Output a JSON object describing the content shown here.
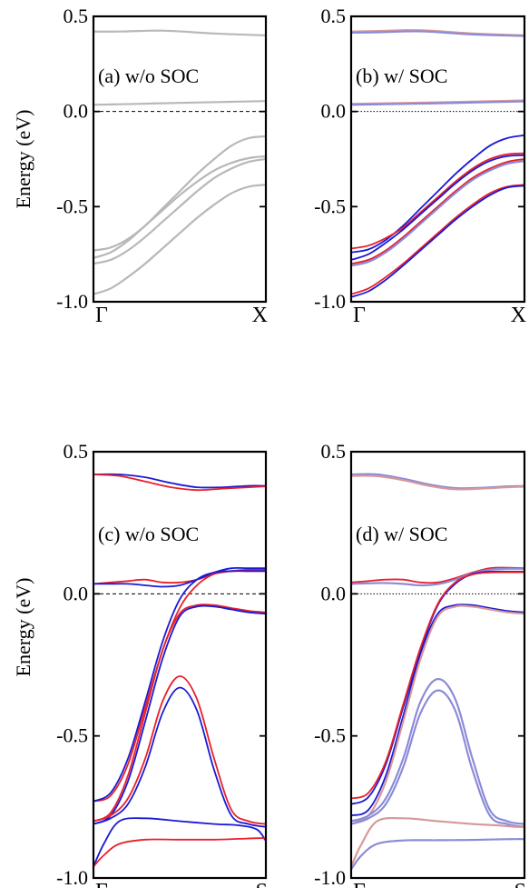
{
  "figure": {
    "ylabel": "Energy (eV)",
    "yticks": [
      "0.5",
      "0.0",
      "-0.5",
      "-1.0"
    ],
    "zero_line": "dashed at 0.0 eV"
  },
  "colors": {
    "no_soc": "#b8b8b8",
    "red": "#e8202a",
    "blue": "#1a1ad6",
    "faded_red": "#d89898",
    "faded_blue": "#8a8ad8",
    "frame": "#000000",
    "zero_line": "#000000"
  },
  "chart_data": [
    {
      "type": "line",
      "panel_label": "(a) w/o SOC",
      "xticks": [
        "Γ",
        "X"
      ],
      "ylim": [
        -1.0,
        0.5
      ],
      "grid": false,
      "series": [
        {
          "style": "gray",
          "x": [
            0,
            0.15,
            0.4,
            0.7,
            1.0
          ],
          "y": [
            0.42,
            0.42,
            0.425,
            0.41,
            0.4
          ]
        },
        {
          "style": "gray",
          "x": [
            0,
            0.25,
            0.5,
            0.75,
            1.0
          ],
          "y": [
            0.035,
            0.04,
            0.045,
            0.05,
            0.055
          ]
        },
        {
          "style": "gray",
          "x": [
            0,
            0.1,
            0.2,
            0.3,
            0.4,
            0.5,
            0.6,
            0.7,
            0.8,
            0.9,
            1.0
          ],
          "y": [
            -0.73,
            -0.715,
            -0.67,
            -0.6,
            -0.51,
            -0.42,
            -0.33,
            -0.25,
            -0.18,
            -0.14,
            -0.13
          ]
        },
        {
          "style": "gray",
          "x": [
            0,
            0.1,
            0.2,
            0.3,
            0.4,
            0.5,
            0.6,
            0.7,
            0.8,
            0.9,
            1.0
          ],
          "y": [
            -0.77,
            -0.74,
            -0.68,
            -0.6,
            -0.52,
            -0.44,
            -0.37,
            -0.31,
            -0.27,
            -0.245,
            -0.235
          ]
        },
        {
          "style": "gray",
          "x": [
            0,
            0.1,
            0.2,
            0.3,
            0.4,
            0.5,
            0.6,
            0.7,
            0.8,
            0.9,
            1.0
          ],
          "y": [
            -0.8,
            -0.78,
            -0.73,
            -0.66,
            -0.58,
            -0.5,
            -0.42,
            -0.35,
            -0.3,
            -0.265,
            -0.25
          ]
        },
        {
          "style": "gray",
          "x": [
            0,
            0.1,
            0.2,
            0.3,
            0.4,
            0.5,
            0.6,
            0.7,
            0.8,
            0.9,
            1.0
          ],
          "y": [
            -0.96,
            -0.93,
            -0.87,
            -0.8,
            -0.72,
            -0.64,
            -0.56,
            -0.49,
            -0.43,
            -0.395,
            -0.385
          ]
        }
      ]
    },
    {
      "type": "line",
      "panel_label": "(b) w/ SOC",
      "xticks": [
        "Γ",
        "X"
      ],
      "ylim": [
        -1.0,
        0.5
      ],
      "grid": false,
      "series": [
        {
          "style": "faded_red",
          "x": [
            0,
            0.15,
            0.4,
            0.7,
            1.0
          ],
          "y": [
            0.42,
            0.423,
            0.427,
            0.41,
            0.4
          ]
        },
        {
          "style": "faded_blue",
          "x": [
            0,
            0.15,
            0.4,
            0.7,
            1.0
          ],
          "y": [
            0.414,
            0.416,
            0.421,
            0.405,
            0.397
          ]
        },
        {
          "style": "faded_red",
          "x": [
            0,
            0.25,
            0.5,
            0.75,
            1.0
          ],
          "y": [
            0.04,
            0.044,
            0.048,
            0.053,
            0.058
          ]
        },
        {
          "style": "faded_blue",
          "x": [
            0,
            0.25,
            0.5,
            0.75,
            1.0
          ],
          "y": [
            0.035,
            0.039,
            0.043,
            0.048,
            0.053
          ]
        },
        {
          "style": "blue",
          "x": [
            0,
            0.1,
            0.2,
            0.3,
            0.4,
            0.5,
            0.6,
            0.7,
            0.8,
            0.9,
            1.0
          ],
          "y": [
            -0.74,
            -0.725,
            -0.675,
            -0.6,
            -0.51,
            -0.42,
            -0.33,
            -0.25,
            -0.18,
            -0.14,
            -0.125
          ]
        },
        {
          "style": "red",
          "x": [
            0,
            0.1,
            0.2,
            0.3,
            0.4,
            0.5,
            0.6,
            0.7,
            0.8,
            0.9,
            1.0
          ],
          "y": [
            -0.72,
            -0.705,
            -0.665,
            -0.61,
            -0.53,
            -0.45,
            -0.37,
            -0.3,
            -0.25,
            -0.225,
            -0.22
          ]
        },
        {
          "style": "blue",
          "x": [
            0,
            0.1,
            0.2,
            0.3,
            0.4,
            0.5,
            0.6,
            0.7,
            0.8,
            0.9,
            1.0
          ],
          "y": [
            -0.78,
            -0.75,
            -0.69,
            -0.62,
            -0.54,
            -0.46,
            -0.38,
            -0.31,
            -0.26,
            -0.235,
            -0.23
          ]
        },
        {
          "style": "red",
          "x": [
            0,
            0.1,
            0.2,
            0.3,
            0.4,
            0.5,
            0.6,
            0.7,
            0.8,
            0.9,
            1.0
          ],
          "y": [
            -0.8,
            -0.78,
            -0.73,
            -0.66,
            -0.58,
            -0.5,
            -0.42,
            -0.35,
            -0.3,
            -0.265,
            -0.25
          ]
        },
        {
          "style": "faded_blue",
          "x": [
            0,
            0.1,
            0.2,
            0.3,
            0.4,
            0.5,
            0.6,
            0.7,
            0.8,
            0.9,
            1.0
          ],
          "y": [
            -0.81,
            -0.79,
            -0.74,
            -0.67,
            -0.59,
            -0.51,
            -0.43,
            -0.36,
            -0.31,
            -0.275,
            -0.26
          ]
        },
        {
          "style": "red",
          "x": [
            0,
            0.1,
            0.2,
            0.3,
            0.4,
            0.5,
            0.6,
            0.7,
            0.8,
            0.9,
            1.0
          ],
          "y": [
            -0.96,
            -0.93,
            -0.87,
            -0.8,
            -0.72,
            -0.64,
            -0.56,
            -0.49,
            -0.43,
            -0.395,
            -0.385
          ]
        },
        {
          "style": "blue",
          "x": [
            0,
            0.1,
            0.2,
            0.3,
            0.4,
            0.5,
            0.6,
            0.7,
            0.8,
            0.9,
            1.0
          ],
          "y": [
            -0.975,
            -0.945,
            -0.885,
            -0.81,
            -0.73,
            -0.65,
            -0.57,
            -0.5,
            -0.44,
            -0.4,
            -0.39
          ]
        }
      ]
    },
    {
      "type": "line",
      "panel_label": "(c) w/o SOC",
      "xticks": [
        "Γ",
        "S"
      ],
      "ylim": [
        -1.0,
        0.5
      ],
      "grid": false,
      "series": [
        {
          "style": "blue",
          "x": [
            0,
            0.15,
            0.3,
            0.45,
            0.6,
            0.75,
            0.9,
            1.0
          ],
          "y": [
            0.42,
            0.42,
            0.41,
            0.39,
            0.375,
            0.375,
            0.38,
            0.38
          ]
        },
        {
          "style": "red",
          "x": [
            0,
            0.15,
            0.3,
            0.45,
            0.6,
            0.75,
            0.9,
            1.0
          ],
          "y": [
            0.42,
            0.415,
            0.395,
            0.375,
            0.365,
            0.37,
            0.375,
            0.378
          ]
        },
        {
          "style": "red",
          "x": [
            0,
            0.1,
            0.2,
            0.3,
            0.4,
            0.5,
            0.6,
            0.7,
            0.8,
            0.9,
            1.0
          ],
          "y": [
            0.035,
            0.04,
            0.045,
            0.05,
            0.04,
            0.04,
            0.05,
            0.07,
            0.08,
            0.085,
            0.085
          ]
        },
        {
          "style": "blue",
          "x": [
            0,
            0.1,
            0.2,
            0.3,
            0.4,
            0.5,
            0.6,
            0.7,
            0.8,
            0.9,
            1.0
          ],
          "y": [
            0.035,
            0.035,
            0.035,
            0.03,
            0.025,
            0.03,
            0.05,
            0.075,
            0.09,
            0.09,
            0.09
          ]
        },
        {
          "style": "red",
          "x": [
            0,
            0.1,
            0.2,
            0.3,
            0.4,
            0.5,
            0.6,
            0.7,
            0.8,
            0.9,
            1.0
          ],
          "y": [
            -0.73,
            -0.71,
            -0.6,
            -0.4,
            -0.2,
            -0.05,
            0.03,
            0.07,
            0.08,
            0.08,
            0.08
          ]
        },
        {
          "style": "blue",
          "x": [
            0,
            0.1,
            0.2,
            0.3,
            0.4,
            0.5,
            0.6,
            0.7,
            0.8,
            0.9,
            1.0
          ],
          "y": [
            -0.73,
            -0.7,
            -0.58,
            -0.38,
            -0.17,
            -0.02,
            0.05,
            0.075,
            0.08,
            0.08,
            0.08
          ]
        },
        {
          "style": "red",
          "x": [
            0,
            0.1,
            0.2,
            0.3,
            0.4,
            0.5,
            0.6,
            0.7,
            0.8,
            0.9,
            1.0
          ],
          "y": [
            -0.8,
            -0.77,
            -0.64,
            -0.42,
            -0.2,
            -0.07,
            -0.04,
            -0.04,
            -0.05,
            -0.06,
            -0.065
          ]
        },
        {
          "style": "blue",
          "x": [
            0,
            0.1,
            0.2,
            0.3,
            0.4,
            0.5,
            0.6,
            0.7,
            0.8,
            0.9,
            1.0
          ],
          "y": [
            -0.81,
            -0.78,
            -0.66,
            -0.45,
            -0.23,
            -0.08,
            -0.045,
            -0.045,
            -0.055,
            -0.065,
            -0.07
          ]
        },
        {
          "style": "red",
          "x": [
            0,
            0.1,
            0.2,
            0.3,
            0.4,
            0.5,
            0.6,
            0.7,
            0.8,
            0.9,
            1.0
          ],
          "y": [
            -0.8,
            -0.78,
            -0.72,
            -0.58,
            -0.38,
            -0.29,
            -0.37,
            -0.58,
            -0.76,
            -0.8,
            -0.81
          ]
        },
        {
          "style": "blue",
          "x": [
            0,
            0.1,
            0.2,
            0.3,
            0.4,
            0.5,
            0.6,
            0.7,
            0.8,
            0.9,
            1.0
          ],
          "y": [
            -0.81,
            -0.79,
            -0.74,
            -0.61,
            -0.42,
            -0.33,
            -0.41,
            -0.62,
            -0.78,
            -0.81,
            -0.82
          ]
        },
        {
          "style": "blue",
          "x": [
            0,
            0.06,
            0.15,
            0.3,
            0.5,
            0.7,
            0.85,
            0.95,
            1.0
          ],
          "y": [
            -0.96,
            -0.88,
            -0.8,
            -0.79,
            -0.8,
            -0.81,
            -0.815,
            -0.83,
            -0.87
          ]
        },
        {
          "style": "red",
          "x": [
            0,
            0.06,
            0.15,
            0.3,
            0.5,
            0.7,
            0.85,
            0.95,
            1.0
          ],
          "y": [
            -0.96,
            -0.92,
            -0.88,
            -0.865,
            -0.865,
            -0.865,
            -0.862,
            -0.86,
            -0.86
          ]
        }
      ]
    },
    {
      "type": "line",
      "panel_label": "(d) w/ SOC",
      "xticks": [
        "Γ",
        "S"
      ],
      "ylim": [
        -1.0,
        0.5
      ],
      "grid": false,
      "series": [
        {
          "style": "faded_blue",
          "x": [
            0,
            0.15,
            0.3,
            0.45,
            0.6,
            0.75,
            0.9,
            1.0
          ],
          "y": [
            0.42,
            0.42,
            0.405,
            0.385,
            0.372,
            0.373,
            0.378,
            0.379
          ]
        },
        {
          "style": "faded_red",
          "x": [
            0,
            0.15,
            0.3,
            0.45,
            0.6,
            0.75,
            0.9,
            1.0
          ],
          "y": [
            0.415,
            0.414,
            0.4,
            0.38,
            0.368,
            0.37,
            0.375,
            0.377
          ]
        },
        {
          "style": "red",
          "x": [
            0,
            0.1,
            0.2,
            0.3,
            0.4,
            0.5,
            0.6,
            0.7,
            0.8,
            0.9,
            1.0
          ],
          "y": [
            0.04,
            0.045,
            0.05,
            0.05,
            0.04,
            0.04,
            0.055,
            0.075,
            0.09,
            0.092,
            0.09
          ]
        },
        {
          "style": "faded_blue",
          "x": [
            0,
            0.1,
            0.2,
            0.3,
            0.4,
            0.5,
            0.6,
            0.7,
            0.8,
            0.9,
            1.0
          ],
          "y": [
            0.035,
            0.037,
            0.038,
            0.035,
            0.03,
            0.034,
            0.05,
            0.072,
            0.085,
            0.088,
            0.088
          ]
        },
        {
          "style": "blue",
          "x": [
            0,
            0.1,
            0.2,
            0.3,
            0.4,
            0.5,
            0.6,
            0.7,
            0.8,
            0.9,
            1.0
          ],
          "y": [
            -0.74,
            -0.715,
            -0.6,
            -0.4,
            -0.2,
            -0.04,
            0.035,
            0.07,
            0.078,
            0.078,
            0.078
          ]
        },
        {
          "style": "red",
          "x": [
            0,
            0.1,
            0.2,
            0.3,
            0.4,
            0.5,
            0.6,
            0.7,
            0.8,
            0.9,
            1.0
          ],
          "y": [
            -0.72,
            -0.7,
            -0.59,
            -0.39,
            -0.19,
            -0.035,
            0.04,
            0.068,
            0.075,
            0.076,
            0.076
          ]
        },
        {
          "style": "blue",
          "x": [
            0,
            0.1,
            0.2,
            0.3,
            0.4,
            0.5,
            0.6,
            0.7,
            0.8,
            0.9,
            1.0
          ],
          "y": [
            -0.78,
            -0.76,
            -0.64,
            -0.43,
            -0.21,
            -0.07,
            -0.04,
            -0.04,
            -0.05,
            -0.06,
            -0.065
          ]
        },
        {
          "style": "faded_red",
          "x": [
            0,
            0.1,
            0.2,
            0.3,
            0.4,
            0.5,
            0.6,
            0.7,
            0.8,
            0.9,
            1.0
          ],
          "y": [
            -0.8,
            -0.78,
            -0.66,
            -0.45,
            -0.23,
            -0.08,
            -0.045,
            -0.045,
            -0.055,
            -0.065,
            -0.07
          ]
        },
        {
          "style": "faded_blue",
          "x": [
            0,
            0.1,
            0.2,
            0.3,
            0.4,
            0.5,
            0.6,
            0.7,
            0.8,
            0.9,
            1.0
          ],
          "y": [
            -0.8,
            -0.78,
            -0.72,
            -0.58,
            -0.38,
            -0.3,
            -0.37,
            -0.58,
            -0.76,
            -0.8,
            -0.81
          ]
        },
        {
          "style": "faded_blue",
          "x": [
            0,
            0.1,
            0.2,
            0.3,
            0.4,
            0.5,
            0.6,
            0.7,
            0.8,
            0.9,
            1.0
          ],
          "y": [
            -0.81,
            -0.79,
            -0.74,
            -0.61,
            -0.42,
            -0.34,
            -0.41,
            -0.62,
            -0.78,
            -0.81,
            -0.82
          ]
        },
        {
          "style": "faded_red",
          "x": [
            0,
            0.06,
            0.15,
            0.3,
            0.5,
            0.7,
            0.85,
            0.95,
            1.0
          ],
          "y": [
            -0.96,
            -0.88,
            -0.8,
            -0.79,
            -0.8,
            -0.81,
            -0.815,
            -0.82,
            -0.82
          ]
        },
        {
          "style": "faded_blue",
          "x": [
            0,
            0.06,
            0.15,
            0.3,
            0.5,
            0.7,
            0.85,
            0.95,
            1.0
          ],
          "y": [
            -0.97,
            -0.92,
            -0.88,
            -0.868,
            -0.867,
            -0.866,
            -0.864,
            -0.863,
            -0.863
          ]
        }
      ]
    }
  ]
}
